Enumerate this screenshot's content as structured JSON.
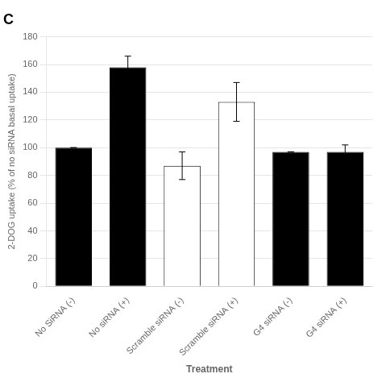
{
  "chart_data": {
    "type": "bar",
    "title": "C",
    "categories": [
      "No SiRNA (-)",
      "No siRNA (+)",
      "Scramble siRNA (-)",
      "Scramble siRNA (+)",
      "G4 siRNA (-)",
      "G4 siRNA (+)"
    ],
    "values": [
      100,
      158,
      87,
      133,
      97,
      97
    ],
    "errors": [
      0,
      8,
      10,
      14,
      0,
      5
    ],
    "colors": [
      "black",
      "black",
      "white",
      "white",
      "black",
      "black"
    ],
    "ylabel": "2-DOG uptake (% of no siRNA basal uptake)",
    "xlabel": "Treatment",
    "ylim": [
      0,
      180
    ],
    "yticks": [
      0,
      20,
      40,
      60,
      80,
      100,
      120,
      140,
      160,
      180
    ],
    "grid": true
  }
}
